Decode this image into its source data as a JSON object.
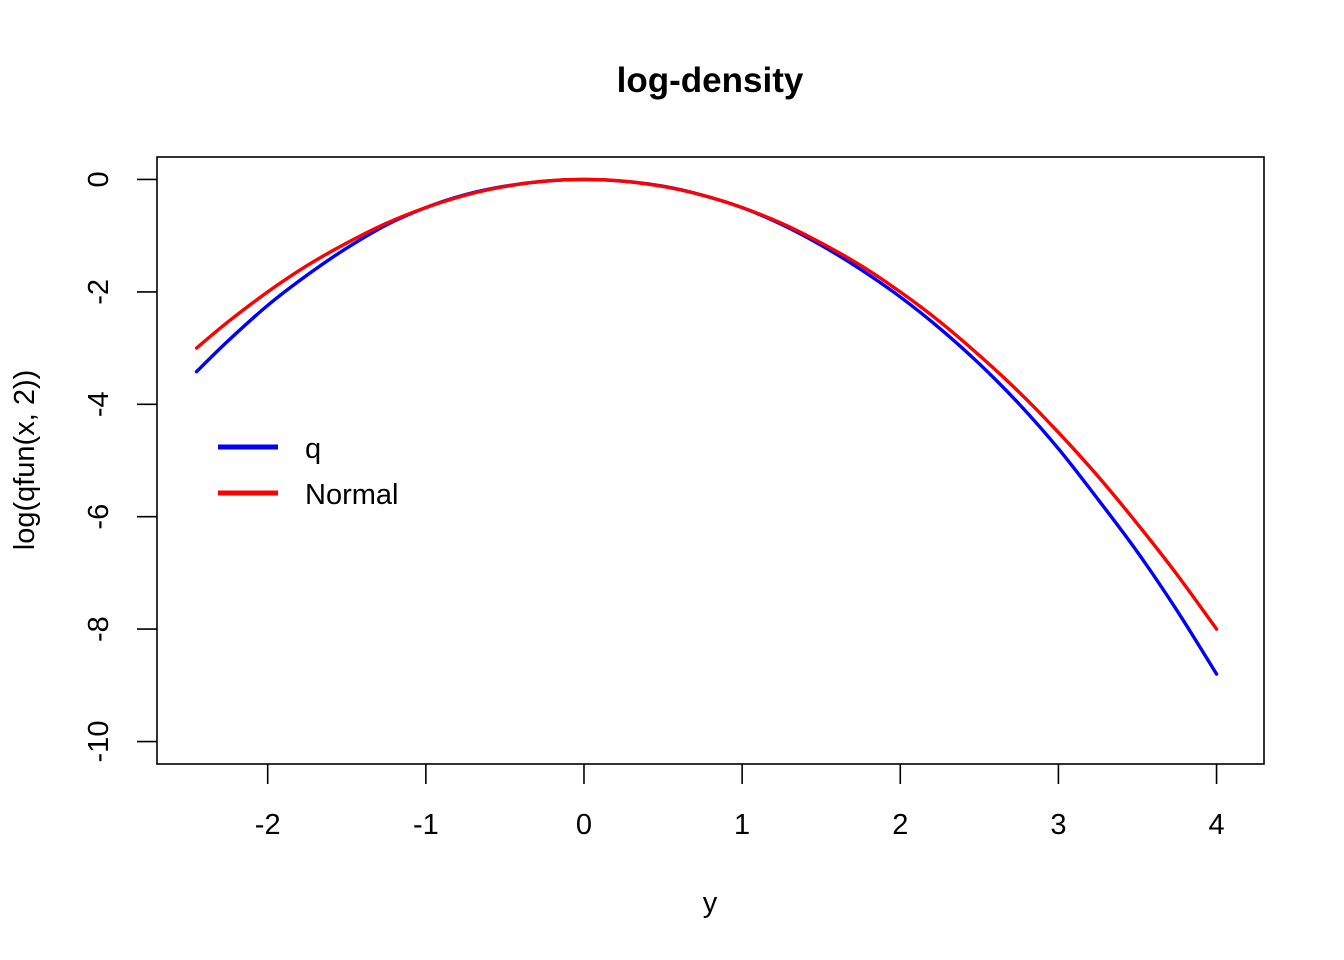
{
  "chart_data": {
    "type": "line",
    "title": "log-density",
    "xlabel": "y",
    "ylabel": "log(qfun(x, 2))",
    "xlim": [
      -2.7,
      4.3
    ],
    "ylim": [
      -10.4,
      0.4
    ],
    "xticks": [
      -2,
      -1,
      0,
      1,
      2,
      3,
      4
    ],
    "yticks": [
      0,
      -2,
      -4,
      -6,
      -8,
      -10
    ],
    "xtick_labels": [
      "-2",
      "-1",
      "0",
      "1",
      "2",
      "3",
      "4"
    ],
    "ytick_labels": [
      "0",
      "-2",
      "-4",
      "-6",
      "-8",
      "-10"
    ],
    "grid": false,
    "legend_position": "left",
    "series": [
      {
        "name": "q",
        "color": "#0000ff",
        "x": [
          -2.45,
          -2.25,
          -2.0,
          -1.75,
          -1.5,
          -1.25,
          -1.0,
          -0.75,
          -0.5,
          -0.25,
          0.0,
          0.25,
          0.5,
          0.75,
          1.0,
          1.25,
          1.5,
          1.75,
          2.0,
          2.25,
          2.5,
          2.75,
          3.0,
          3.25,
          3.5,
          3.75,
          4.0
        ],
        "y": [
          -3.42,
          -2.87,
          -2.24,
          -1.7,
          -1.22,
          -0.81,
          -0.5,
          -0.27,
          -0.12,
          -0.03,
          0.0,
          -0.03,
          -0.12,
          -0.28,
          -0.5,
          -0.8,
          -1.17,
          -1.6,
          -2.09,
          -2.65,
          -3.28,
          -3.99,
          -4.79,
          -5.69,
          -6.63,
          -7.67,
          -8.8
        ]
      },
      {
        "name": "Normal",
        "color": "#ff0000",
        "x": [
          -2.45,
          -2.25,
          -2.0,
          -1.75,
          -1.5,
          -1.25,
          -1.0,
          -0.75,
          -0.5,
          -0.25,
          0.0,
          0.25,
          0.5,
          0.75,
          1.0,
          1.25,
          1.5,
          1.75,
          2.0,
          2.25,
          2.5,
          2.75,
          3.0,
          3.25,
          3.5,
          3.75,
          4.0
        ],
        "y": [
          -3.0,
          -2.53,
          -2.0,
          -1.53,
          -1.13,
          -0.78,
          -0.5,
          -0.28,
          -0.125,
          -0.03,
          0.0,
          -0.03,
          -0.125,
          -0.28,
          -0.5,
          -0.78,
          -1.13,
          -1.53,
          -2.0,
          -2.53,
          -3.13,
          -3.78,
          -4.5,
          -5.28,
          -6.13,
          -7.03,
          -8.0
        ]
      }
    ]
  }
}
